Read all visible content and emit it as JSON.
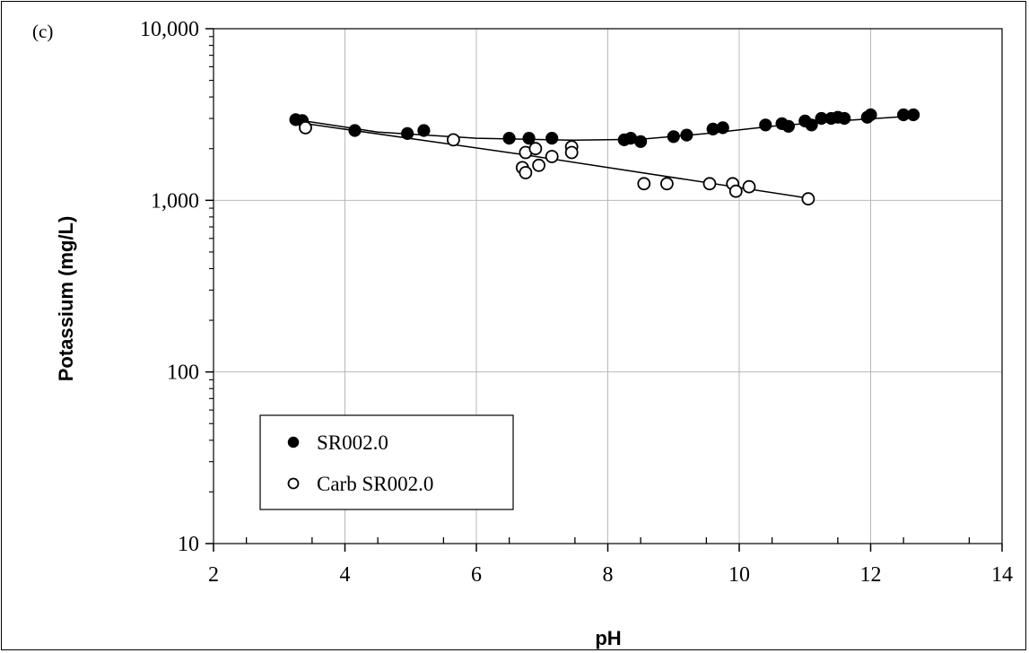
{
  "chart_data": {
    "type": "scatter",
    "panel_label": "(c)",
    "xlabel": "pH",
    "ylabel": "Potassium (mg/L)",
    "xlim": [
      2,
      14
    ],
    "ylim": [
      10,
      10000
    ],
    "y_scale": "log",
    "x_ticks": [
      "2",
      "4",
      "6",
      "8",
      "10",
      "12",
      "14"
    ],
    "y_ticks": [
      "10",
      "100",
      "1,000",
      "10,000"
    ],
    "grid": true,
    "legend_position": "bottom-left",
    "series": [
      {
        "name": "SR002.0",
        "marker": "filled-circle",
        "color": "#000000",
        "points": [
          [
            3.25,
            2950
          ],
          [
            3.35,
            2920
          ],
          [
            4.15,
            2550
          ],
          [
            4.95,
            2450
          ],
          [
            5.2,
            2550
          ],
          [
            6.5,
            2300
          ],
          [
            6.8,
            2300
          ],
          [
            7.15,
            2300
          ],
          [
            8.25,
            2250
          ],
          [
            8.35,
            2300
          ],
          [
            8.5,
            2200
          ],
          [
            9.0,
            2350
          ],
          [
            9.2,
            2400
          ],
          [
            9.6,
            2600
          ],
          [
            9.75,
            2650
          ],
          [
            10.4,
            2750
          ],
          [
            10.65,
            2800
          ],
          [
            10.75,
            2700
          ],
          [
            11.0,
            2900
          ],
          [
            11.1,
            2750
          ],
          [
            11.25,
            3000
          ],
          [
            11.4,
            3000
          ],
          [
            11.5,
            3050
          ],
          [
            11.6,
            3000
          ],
          [
            11.95,
            3050
          ],
          [
            12.0,
            3150
          ],
          [
            12.5,
            3150
          ],
          [
            12.65,
            3150
          ]
        ],
        "fit_line": [
          [
            3.25,
            2950
          ],
          [
            4.5,
            2500
          ],
          [
            6.0,
            2300
          ],
          [
            7.5,
            2240
          ],
          [
            8.5,
            2270
          ],
          [
            9.5,
            2450
          ],
          [
            10.5,
            2700
          ],
          [
            11.5,
            2900
          ],
          [
            12.65,
            3100
          ]
        ]
      },
      {
        "name": "Carb SR002.0",
        "marker": "open-circle",
        "color": "#000000",
        "points": [
          [
            3.4,
            2650
          ],
          [
            5.65,
            2250
          ],
          [
            6.7,
            1550
          ],
          [
            6.75,
            1450
          ],
          [
            6.75,
            1900
          ],
          [
            6.9,
            2000
          ],
          [
            6.95,
            1600
          ],
          [
            7.15,
            1800
          ],
          [
            7.45,
            2050
          ],
          [
            7.45,
            1900
          ],
          [
            8.55,
            1250
          ],
          [
            8.9,
            1250
          ],
          [
            9.55,
            1250
          ],
          [
            9.9,
            1250
          ],
          [
            9.95,
            1130
          ],
          [
            10.15,
            1200
          ],
          [
            11.05,
            1020
          ]
        ],
        "fit_line": [
          [
            3.4,
            2800
          ],
          [
            6.7,
            1850
          ],
          [
            11.05,
            1030
          ]
        ]
      }
    ]
  }
}
